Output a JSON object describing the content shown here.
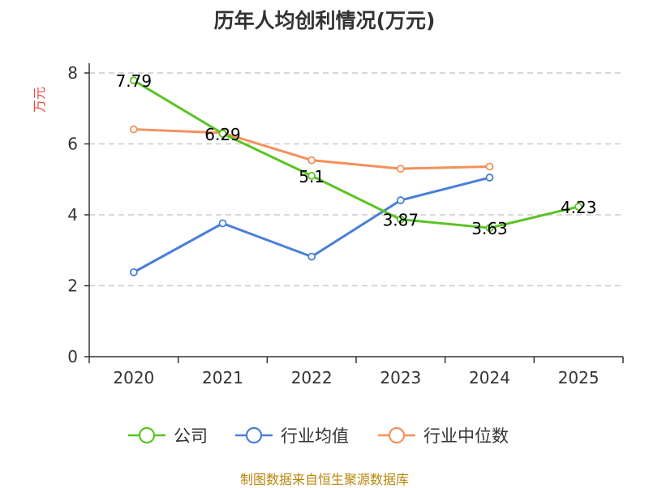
{
  "chart_data": {
    "type": "line",
    "title": "历年人均创利情况(万元)",
    "ylabel": "万元",
    "xlabel": "",
    "ylim": [
      0,
      8
    ],
    "yticks": [
      0,
      2,
      4,
      6,
      8
    ],
    "grid": true,
    "categories": [
      "2020",
      "2021",
      "2022",
      "2023",
      "2024",
      "2025"
    ],
    "series": [
      {
        "name": "公司",
        "color": "#5ac423",
        "values": [
          7.79,
          6.29,
          5.1,
          3.87,
          3.63,
          4.23
        ],
        "labels": [
          "7.79",
          "6.29",
          "5.1",
          "3.87",
          "3.63",
          "4.23"
        ]
      },
      {
        "name": "行业均值",
        "color": "#4a7fd6",
        "values": [
          2.38,
          3.76,
          2.82,
          4.41,
          5.05,
          null
        ]
      },
      {
        "name": "行业中位数",
        "color": "#f4905c",
        "values": [
          6.41,
          6.31,
          5.54,
          5.3,
          5.36,
          null
        ]
      }
    ],
    "legend_position": "bottom"
  },
  "source": "制图数据来自恒生聚源数据库"
}
